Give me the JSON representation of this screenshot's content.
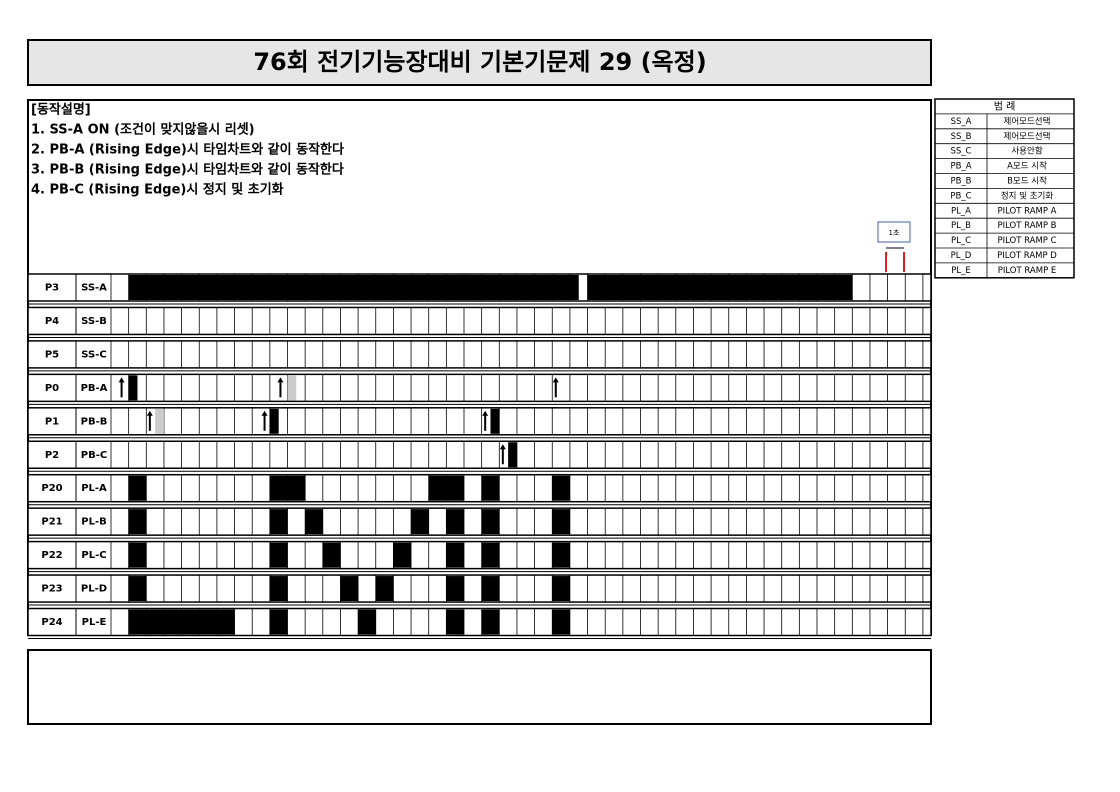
{
  "header": {
    "title": "76회 전기기능장대비 기본기문제 29 (옥정)"
  },
  "description": {
    "heading": "[동작설명]",
    "items": [
      "1. SS-A ON (조건이 맞지않을시 리셋)",
      "2. PB-A (Rising Edge)시 타임차트와 같이 동작한다",
      "3. PB-B (Rising Edge)시 타임차트와 같이 동작한다",
      "4. PB-C (Rising Edge)시 정지 및 초기화"
    ]
  },
  "legend": {
    "header": "범    례",
    "rows": [
      [
        "SS_A",
        "제어모드선택"
      ],
      [
        "SS_B",
        "제어모드선택"
      ],
      [
        "SS_C",
        "사용안함"
      ],
      [
        "PB_A",
        "A모드 시작"
      ],
      [
        "PB_B",
        "B모드 시작"
      ],
      [
        "PB_C",
        "정지 및 초기화"
      ],
      [
        "PL_A",
        "PILOT RAMP A"
      ],
      [
        "PL_B",
        "PILOT RAMP B"
      ],
      [
        "PL_C",
        "PILOT RAMP C"
      ],
      [
        "PL_D",
        "PILOT RAMP D"
      ],
      [
        "PL_E",
        "PILOT RAMP E"
      ]
    ]
  },
  "scale_label": "1초",
  "rows": [
    {
      "port": "P3",
      "signal": "SS-A"
    },
    {
      "port": "P4",
      "signal": "SS-B"
    },
    {
      "port": "P5",
      "signal": "SS-C"
    },
    {
      "port": "P0",
      "signal": "PB-A"
    },
    {
      "port": "P1",
      "signal": "PB-B"
    },
    {
      "port": "P2",
      "signal": "PB-C"
    },
    {
      "port": "P20",
      "signal": "PL-A"
    },
    {
      "port": "P21",
      "signal": "PL-B"
    },
    {
      "port": "P22",
      "signal": "PL-C"
    },
    {
      "port": "P23",
      "signal": "PL-D"
    },
    {
      "port": "P24",
      "signal": "PL-E"
    }
  ]
}
